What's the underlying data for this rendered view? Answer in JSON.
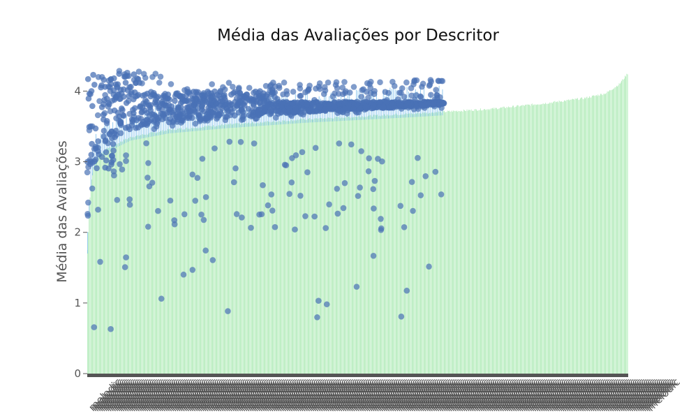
{
  "chart_data": {
    "type": "bar",
    "title": "Média das Avaliações por Descritor",
    "xlabel": "",
    "ylabel": "Média das Avaliações",
    "ylim": [
      0,
      4.4
    ],
    "yticks": [
      0,
      1,
      2,
      3,
      4
    ],
    "grid": false,
    "legend": "none",
    "colors": {
      "bars": "#8fe39a",
      "stems": "#5aaee6",
      "points": "#4a72b5",
      "axis": "#555555"
    },
    "bar_series": {
      "count": 640,
      "profile": [
        [
          0,
          1.75
        ],
        [
          0.005,
          2.55
        ],
        [
          0.01,
          2.9
        ],
        [
          0.02,
          3.1
        ],
        [
          0.04,
          3.2
        ],
        [
          0.08,
          3.35
        ],
        [
          0.15,
          3.45
        ],
        [
          0.25,
          3.52
        ],
        [
          0.4,
          3.6
        ],
        [
          0.6,
          3.68
        ],
        [
          0.75,
          3.75
        ],
        [
          0.85,
          3.83
        ],
        [
          0.92,
          3.9
        ],
        [
          0.96,
          3.97
        ],
        [
          0.985,
          4.1
        ],
        [
          1,
          4.25
        ]
      ]
    },
    "point_series": {
      "count": 420,
      "x_range": [
        0,
        0.66
      ],
      "upper_band": [
        3.1,
        4.3
      ],
      "outliers_low": 0.62
    },
    "x_categories_visible": [
      "melodic",
      "melodic"
    ]
  }
}
